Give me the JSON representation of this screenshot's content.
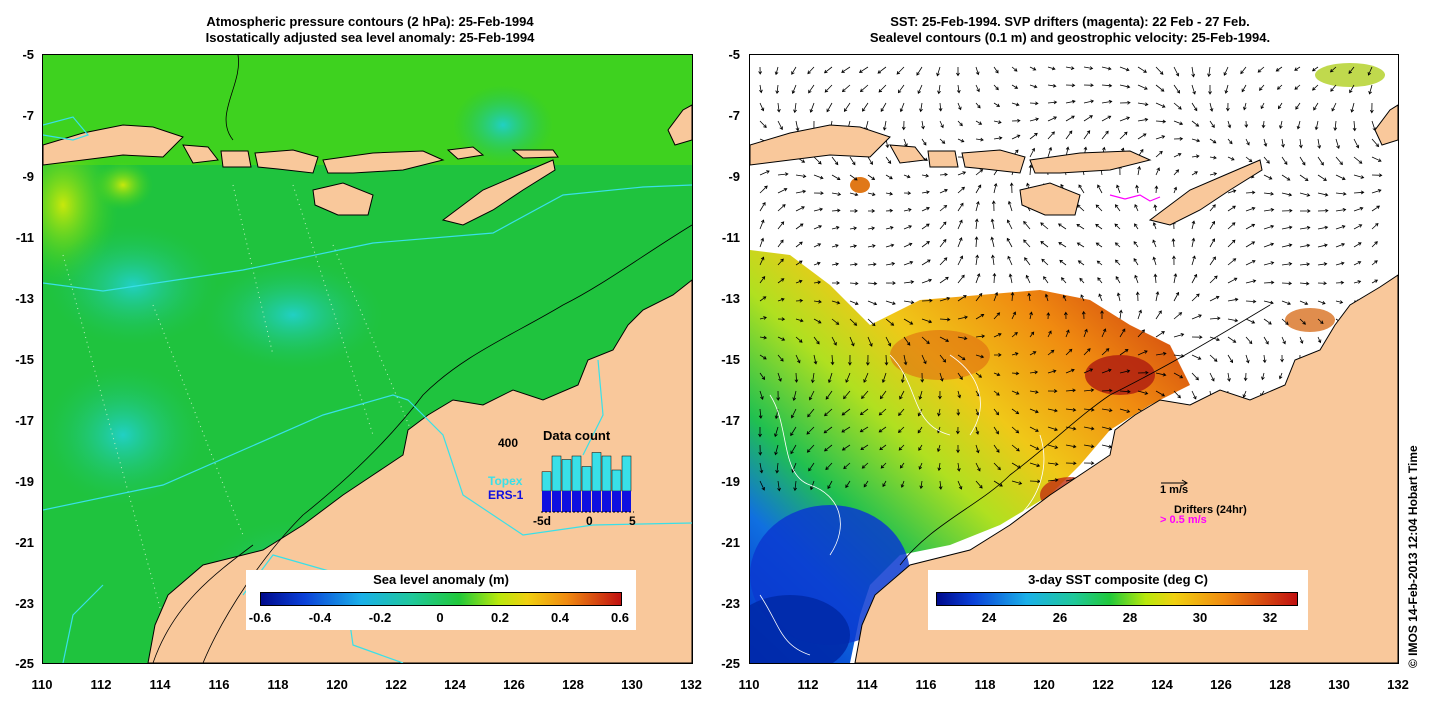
{
  "left_panel": {
    "title_line1": "Atmospheric pressure contours (2 hPa): 25-Feb-1994",
    "title_line2": "Isostatically adjusted sea level anomaly: 25-Feb-1994",
    "colorbar_label": "Sea level anomaly (m)",
    "colorbar_ticks": [
      "-0.6",
      "-0.4",
      "-0.2",
      "0",
      "0.2",
      "0.4",
      "0.6"
    ],
    "inset": {
      "title": "Data count",
      "ymax_label": "400",
      "legend_topex": "Topex",
      "legend_ers": "ERS-1",
      "x_ticks": [
        "-5d",
        "0",
        "5"
      ]
    }
  },
  "right_panel": {
    "title_line1": "SST: 25-Feb-1994. SVP drifters (magenta): 22 Feb - 27 Feb.",
    "title_line2": "Sealevel contours (0.1 m) and geostrophic velocity: 25-Feb-1994.",
    "colorbar_label": "3-day SST composite (deg C)",
    "colorbar_ticks": [
      "24",
      "26",
      "28",
      "30",
      "32"
    ],
    "velocity_scale": "1 m/s",
    "drifters_label": "Drifters (24hr)",
    "drifters_speed": "> 0.5 m/s"
  },
  "axes": {
    "lat_ticks": [
      "-5",
      "-7",
      "-9",
      "-11",
      "-13",
      "-15",
      "-17",
      "-19",
      "-21",
      "-23",
      "-25"
    ],
    "lon_ticks": [
      "110",
      "112",
      "114",
      "116",
      "118",
      "120",
      "122",
      "124",
      "126",
      "128",
      "130",
      "132"
    ]
  },
  "credit": "© IMOS 14-Feb-2013 12:04 Hobart Time",
  "colors": {
    "land": "#f9c89b",
    "coast": "#000000",
    "altimeter_track": "#39e0e8",
    "ocean_green": "#1fc33e",
    "magenta": "#ff00ff",
    "topex_bar": "#39e0e8",
    "ers_bar": "#1010e0"
  },
  "inset_bars": {
    "topex_total": [
      230,
      320,
      300,
      320,
      260,
      340,
      320,
      240,
      320
    ],
    "ers_part": [
      120,
      120,
      120,
      120,
      120,
      120,
      120,
      120,
      120
    ],
    "ymax": 400
  }
}
